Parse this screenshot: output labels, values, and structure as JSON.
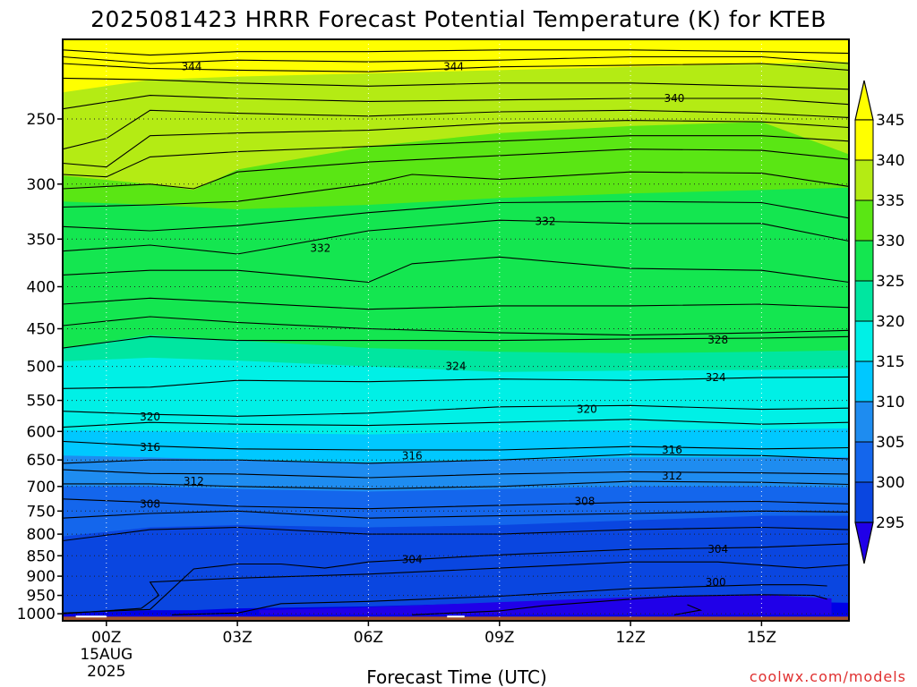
{
  "chart_data": {
    "type": "heatmap",
    "title": "2025081423 HRRR Forecast Potential Temperature (K) for KTEB",
    "xlabel": "Forecast Time (UTC)",
    "ylabel": "",
    "credit": "coolwx.com/models",
    "x_ticks": [
      "00Z",
      "03Z",
      "06Z",
      "09Z",
      "12Z",
      "15Z"
    ],
    "x_tick_hours": [
      0,
      3,
      6,
      9,
      12,
      15
    ],
    "x_date_line1": "15AUG",
    "x_date_line2": "2025",
    "xlim_hours": [
      -1,
      17
    ],
    "y_ticks": [
      250,
      300,
      350,
      400,
      450,
      500,
      550,
      600,
      650,
      700,
      750,
      800,
      850,
      900,
      950,
      1000
    ],
    "ylim_hpa": [
      1020,
      200
    ],
    "y_scale": "log-pressure",
    "grid": true,
    "colorbar": {
      "levels": [
        295,
        300,
        305,
        310,
        315,
        320,
        325,
        330,
        335,
        340,
        345
      ],
      "tick_labels": [
        "295",
        "300",
        "305",
        "310",
        "315",
        "320",
        "325",
        "330",
        "335",
        "340",
        "345"
      ],
      "colors": [
        "#0000e6",
        "#0a46e0",
        "#1466ec",
        "#1e8cf0",
        "#00c8ff",
        "#00f0e6",
        "#00e6a0",
        "#14e650",
        "#5ae614",
        "#b4eb14",
        "#ffff00"
      ],
      "under_color": "#2000e8",
      "over_color": "#ffff00",
      "extend": "both"
    },
    "contour_labels": [
      {
        "text": "344",
        "hour": 1.95,
        "p": 216
      },
      {
        "text": "344",
        "hour": 7.95,
        "p": 216
      },
      {
        "text": "340",
        "hour": 13.0,
        "p": 236
      },
      {
        "text": "332",
        "hour": 4.9,
        "p": 359
      },
      {
        "text": "332",
        "hour": 10.05,
        "p": 333
      },
      {
        "text": "328",
        "hour": 14.0,
        "p": 464
      },
      {
        "text": "324",
        "hour": 8.0,
        "p": 500
      },
      {
        "text": "324",
        "hour": 13.95,
        "p": 516
      },
      {
        "text": "320",
        "hour": 1.0,
        "p": 576
      },
      {
        "text": "320",
        "hour": 11.0,
        "p": 564
      },
      {
        "text": "316",
        "hour": 1.0,
        "p": 627
      },
      {
        "text": "316",
        "hour": 7.0,
        "p": 642
      },
      {
        "text": "316",
        "hour": 12.95,
        "p": 632
      },
      {
        "text": "312",
        "hour": 2.0,
        "p": 690
      },
      {
        "text": "312",
        "hour": 12.95,
        "p": 680
      },
      {
        "text": "308",
        "hour": 1.0,
        "p": 735
      },
      {
        "text": "308",
        "hour": 10.95,
        "p": 730
      },
      {
        "text": "304",
        "hour": 7.0,
        "p": 859
      },
      {
        "text": "304",
        "hour": 14.0,
        "p": 835
      },
      {
        "text": "300",
        "hour": 13.95,
        "p": 916
      }
    ],
    "isentropes": [
      {
        "name": "345",
        "hour": [
          -1,
          1,
          3,
          6,
          9,
          12,
          15,
          17
        ],
        "p": [
          232,
          224,
          222,
          220,
          218,
          216,
          214,
          213
        ]
      },
      {
        "name": "340",
        "hour": [
          -1,
          1,
          2,
          3,
          6,
          9,
          12,
          15,
          17
        ],
        "p": [
          293,
          300,
          305,
          288,
          270,
          260,
          255,
          252,
          276
        ]
      },
      {
        "name": "335",
        "hour": [
          -1,
          1,
          3,
          6,
          9,
          12,
          15,
          17
        ],
        "p": [
          315,
          318,
          322,
          318,
          312,
          308,
          305,
          303
        ]
      },
      {
        "name": "330",
        "hour": [
          -1,
          1,
          3,
          6,
          9,
          12,
          15,
          17
        ],
        "p": [
          475,
          458,
          465,
          475,
          480,
          482,
          480,
          478
        ]
      },
      {
        "name": "325",
        "hour": [
          -1,
          1,
          3,
          6,
          9,
          12,
          15,
          17
        ],
        "p": [
          493,
          488,
          492,
          500,
          508,
          506,
          505,
          503
        ]
      },
      {
        "name": "320",
        "hour": [
          -1,
          1,
          3,
          6,
          9,
          12,
          15,
          17
        ],
        "p": [
          598,
          600,
          602,
          605,
          600,
          598,
          596,
          595
        ]
      },
      {
        "name": "315",
        "hour": [
          -1,
          1,
          3,
          6,
          9,
          12,
          15,
          17
        ],
        "p": [
          642,
          645,
          650,
          655,
          650,
          645,
          645,
          645
        ]
      },
      {
        "name": "310",
        "hour": [
          -1,
          1,
          3,
          6,
          9,
          12,
          15,
          17
        ],
        "p": [
          700,
          700,
          705,
          710,
          705,
          700,
          700,
          702
        ]
      },
      {
        "name": "305",
        "hour": [
          -1,
          1,
          3,
          6,
          9,
          12,
          15,
          17
        ],
        "p": [
          805,
          785,
          780,
          785,
          780,
          770,
          760,
          760
        ]
      },
      {
        "name": "300",
        "hour": [
          -1,
          0,
          1,
          2,
          3,
          6,
          9,
          12,
          15,
          17
        ],
        "p": [
          1000,
          995,
          990,
          990,
          985,
          980,
          970,
          965,
          965,
          970
        ]
      }
    ],
    "contours": [
      {
        "hour": [
          -1,
          1,
          3,
          6,
          9,
          12,
          15,
          17
        ],
        "p": [
          206,
          209,
          207,
          207,
          206,
          206,
          207,
          208
        ]
      },
      {
        "hour": [
          -1,
          1,
          3,
          6,
          9,
          12,
          15,
          17
        ],
        "p": [
          210,
          214,
          212,
          213,
          212,
          210,
          210,
          214
        ]
      },
      {
        "hour": [
          -1,
          1,
          3,
          6,
          9,
          12,
          15,
          17
        ],
        "p": [
          214,
          217,
          218,
          219,
          216,
          215,
          214,
          218
        ]
      },
      {
        "hour": [
          -1,
          1,
          3,
          6,
          9,
          12,
          15,
          17
        ],
        "p": [
          223,
          224,
          226,
          228,
          226,
          226,
          228,
          230
        ]
      },
      {
        "hour": [
          -1,
          1,
          3,
          6,
          9,
          12,
          15,
          17
        ],
        "p": [
          243,
          234,
          236,
          238,
          237,
          236,
          236,
          240
        ]
      },
      {
        "hour": [
          -1,
          0,
          1,
          3,
          6,
          9,
          12,
          15,
          17
        ],
        "p": [
          272,
          264,
          244,
          246,
          248,
          245,
          244,
          246,
          249
        ]
      },
      {
        "hour": [
          -1,
          0,
          1,
          3,
          6,
          9,
          12,
          15,
          17
        ],
        "p": [
          283,
          286,
          262,
          260,
          258,
          253,
          251,
          252,
          256
        ]
      },
      {
        "hour": [
          -1,
          0,
          1,
          3,
          6,
          9,
          12,
          15,
          17
        ],
        "p": [
          292,
          294,
          278,
          274,
          270,
          266,
          262,
          262,
          266
        ]
      },
      {
        "hour": [
          -1,
          1,
          2,
          3,
          6,
          9,
          12,
          15,
          17
        ],
        "p": [
          304,
          300,
          304,
          290,
          282,
          277,
          272,
          273,
          280
        ]
      },
      {
        "hour": [
          -1,
          1,
          3,
          6,
          7,
          9,
          12,
          15,
          17
        ],
        "p": [
          320,
          318,
          315,
          300,
          292,
          296,
          290,
          291,
          302
        ]
      },
      {
        "hour": [
          -1,
          1,
          3,
          6,
          9,
          12,
          15,
          17
        ],
        "p": [
          338,
          342,
          337,
          325,
          316,
          315,
          316,
          330
        ]
      },
      {
        "hour": [
          -1,
          1,
          3,
          6,
          9,
          12,
          15,
          17
        ],
        "p": [
          362,
          356,
          365,
          342,
          332,
          335,
          335,
          352
        ]
      },
      {
        "hour": [
          -1,
          1,
          3,
          6,
          7,
          9,
          12,
          15,
          17
        ],
        "p": [
          387,
          382,
          382,
          395,
          375,
          368,
          380,
          382,
          395
        ]
      },
      {
        "hour": [
          -1,
          1,
          3,
          6,
          9,
          12,
          15,
          17
        ],
        "p": [
          420,
          413,
          418,
          426,
          422,
          422,
          420,
          424
        ]
      },
      {
        "hour": [
          -1,
          1,
          3,
          6,
          9,
          12,
          15,
          17
        ],
        "p": [
          446,
          435,
          442,
          450,
          455,
          458,
          455,
          452
        ]
      },
      {
        "hour": [
          -1,
          1,
          3,
          6,
          9,
          12,
          15,
          17
        ],
        "p": [
          475,
          460,
          465,
          465,
          465,
          463,
          462,
          460
        ]
      },
      {
        "hour": [
          -1,
          1,
          3,
          6,
          9,
          12,
          15,
          17
        ],
        "p": [
          532,
          530,
          520,
          522,
          518,
          520,
          516,
          515
        ]
      },
      {
        "hour": [
          -1,
          1,
          3,
          6,
          9,
          12,
          15,
          17
        ],
        "p": [
          567,
          572,
          575,
          570,
          560,
          558,
          564,
          562
        ]
      },
      {
        "hour": [
          -1,
          1,
          3,
          6,
          9,
          12,
          15,
          17
        ],
        "p": [
          593,
          585,
          588,
          590,
          585,
          580,
          588,
          585
        ]
      },
      {
        "hour": [
          -1,
          1,
          3,
          6,
          9,
          12,
          15,
          17
        ],
        "p": [
          617,
          625,
          630,
          632,
          632,
          626,
          630,
          628
        ]
      },
      {
        "hour": [
          -1,
          1,
          3,
          6,
          9,
          12,
          15,
          17
        ],
        "p": [
          656,
          650,
          650,
          656,
          650,
          640,
          642,
          648
        ]
      },
      {
        "hour": [
          -1,
          1,
          3,
          6,
          9,
          12,
          15,
          17
        ],
        "p": [
          668,
          675,
          676,
          683,
          676,
          672,
          674,
          676
        ]
      },
      {
        "hour": [
          -1,
          1,
          3,
          6,
          9,
          12,
          15,
          17
        ],
        "p": [
          695,
          695,
          700,
          705,
          700,
          690,
          692,
          696
        ]
      },
      {
        "hour": [
          -1,
          1,
          3,
          6,
          9,
          12,
          15,
          17
        ],
        "p": [
          725,
          732,
          740,
          745,
          738,
          732,
          730,
          735
        ]
      },
      {
        "hour": [
          -1,
          1,
          3,
          6,
          9,
          12,
          15,
          17
        ],
        "p": [
          765,
          755,
          750,
          765,
          760,
          755,
          750,
          752
        ]
      },
      {
        "hour": [
          -1,
          1,
          3,
          6,
          9,
          12,
          15,
          17
        ],
        "p": [
          815,
          790,
          785,
          800,
          800,
          790,
          785,
          790
        ]
      },
      {
        "hour": [
          -1,
          1,
          2,
          3,
          4,
          5,
          6,
          9,
          12,
          15,
          17
        ],
        "p": [
          998,
          988,
          882,
          870,
          870,
          880,
          865,
          848,
          835,
          830,
          822
        ]
      },
      {
        "hour": [
          -1,
          0.8,
          1.2,
          1.0,
          1.6,
          3,
          6,
          9,
          12,
          14,
          16,
          17
        ],
        "p": [
          1000,
          985,
          950,
          915,
          912,
          905,
          895,
          880,
          865,
          865,
          880,
          872
        ]
      },
      {
        "hour": [
          1.5,
          3,
          3.2,
          4,
          6,
          9,
          12,
          15,
          16,
          16.5
        ],
        "p": [
          1003,
          998,
          993,
          972,
          966,
          952,
          932,
          922,
          922,
          925
        ]
      },
      {
        "hour": [
          7,
          9,
          10,
          12,
          13,
          15,
          16.2,
          16.5
        ],
        "p": [
          1003,
          992,
          978,
          960,
          952,
          948,
          950,
          960
        ]
      },
      {
        "hour": [
          13,
          13.6,
          13.3
        ],
        "p": [
          1003,
          990,
          975
        ]
      }
    ],
    "surface_pressure_hpa": 1008
  }
}
